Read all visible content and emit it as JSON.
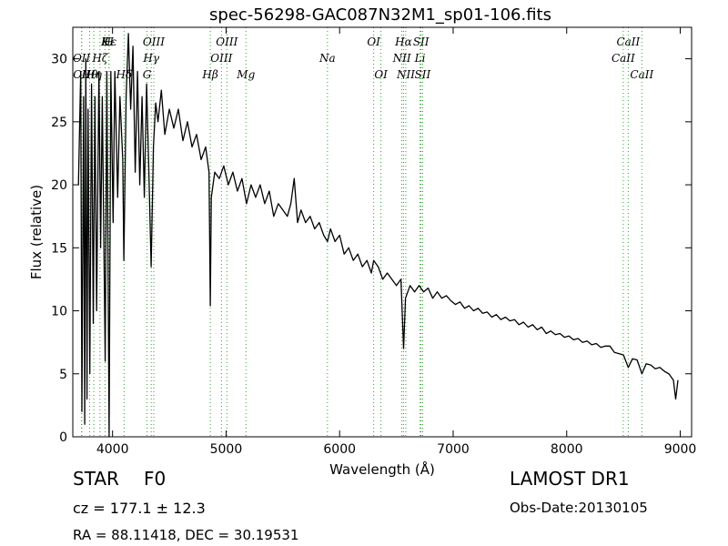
{
  "chart_data": {
    "type": "line",
    "title": "spec-56298-GAC087N32M1_sp01-106.fits",
    "xlabel": "Wavelength (Å)",
    "ylabel": "Flux (relative)",
    "xlim": [
      3650,
      9100
    ],
    "ylim": [
      0,
      32.5
    ],
    "xticks": [
      4000,
      5000,
      6000,
      7000,
      8000,
      9000
    ],
    "yticks": [
      0,
      5,
      10,
      15,
      20,
      25,
      30
    ],
    "grid": false,
    "line_color": "#000000",
    "marker_color": "#2ca02c",
    "series": [
      {
        "points": [
          [
            3700,
            20
          ],
          [
            3720,
            29
          ],
          [
            3730,
            2
          ],
          [
            3745,
            27
          ],
          [
            3755,
            1
          ],
          [
            3765,
            30
          ],
          [
            3775,
            3
          ],
          [
            3785,
            26
          ],
          [
            3800,
            5
          ],
          [
            3815,
            28
          ],
          [
            3830,
            9
          ],
          [
            3845,
            27
          ],
          [
            3860,
            10
          ],
          [
            3880,
            29
          ],
          [
            3895,
            15
          ],
          [
            3910,
            27
          ],
          [
            3935,
            6
          ],
          [
            3950,
            29
          ],
          [
            3970,
            0
          ],
          [
            3985,
            29
          ],
          [
            4005,
            17
          ],
          [
            4020,
            29
          ],
          [
            4045,
            19
          ],
          [
            4065,
            27
          ],
          [
            4090,
            22
          ],
          [
            4100,
            14
          ],
          [
            4120,
            27
          ],
          [
            4140,
            32
          ],
          [
            4160,
            26
          ],
          [
            4180,
            31
          ],
          [
            4200,
            21
          ],
          [
            4220,
            29
          ],
          [
            4240,
            20
          ],
          [
            4260,
            27
          ],
          [
            4280,
            19
          ],
          [
            4300,
            28
          ],
          [
            4320,
            21
          ],
          [
            4340,
            13.5
          ],
          [
            4360,
            23
          ],
          [
            4380,
            26.5
          ],
          [
            4400,
            25
          ],
          [
            4430,
            27.5
          ],
          [
            4460,
            24
          ],
          [
            4500,
            26
          ],
          [
            4540,
            24.5
          ],
          [
            4580,
            26
          ],
          [
            4620,
            23.5
          ],
          [
            4660,
            25
          ],
          [
            4700,
            23
          ],
          [
            4740,
            24
          ],
          [
            4780,
            22
          ],
          [
            4820,
            23
          ],
          [
            4850,
            21
          ],
          [
            4861,
            10.4
          ],
          [
            4870,
            19
          ],
          [
            4900,
            21
          ],
          [
            4940,
            20.5
          ],
          [
            4980,
            21.5
          ],
          [
            5020,
            20
          ],
          [
            5060,
            21
          ],
          [
            5100,
            19.5
          ],
          [
            5140,
            20.5
          ],
          [
            5180,
            18.5
          ],
          [
            5220,
            20
          ],
          [
            5260,
            19
          ],
          [
            5300,
            20
          ],
          [
            5340,
            18.5
          ],
          [
            5380,
            19.5
          ],
          [
            5420,
            17.5
          ],
          [
            5460,
            18.5
          ],
          [
            5500,
            18
          ],
          [
            5540,
            17.5
          ],
          [
            5570,
            18.5
          ],
          [
            5600,
            20.5
          ],
          [
            5630,
            17
          ],
          [
            5660,
            18
          ],
          [
            5700,
            17
          ],
          [
            5740,
            17.5
          ],
          [
            5780,
            16.5
          ],
          [
            5820,
            17
          ],
          [
            5860,
            16
          ],
          [
            5893,
            15.5
          ],
          [
            5920,
            16.5
          ],
          [
            5960,
            15.5
          ],
          [
            6000,
            16
          ],
          [
            6040,
            14.5
          ],
          [
            6080,
            15
          ],
          [
            6120,
            14
          ],
          [
            6160,
            14.5
          ],
          [
            6200,
            13.5
          ],
          [
            6240,
            14
          ],
          [
            6280,
            13
          ],
          [
            6300,
            14
          ],
          [
            6340,
            13.5
          ],
          [
            6380,
            12.5
          ],
          [
            6420,
            13
          ],
          [
            6460,
            12.5
          ],
          [
            6500,
            12
          ],
          [
            6540,
            12.5
          ],
          [
            6563,
            7
          ],
          [
            6580,
            11
          ],
          [
            6620,
            12
          ],
          [
            6660,
            11.5
          ],
          [
            6700,
            12
          ],
          [
            6740,
            11.5
          ],
          [
            6780,
            11.8
          ],
          [
            6820,
            11
          ],
          [
            6860,
            11.5
          ],
          [
            6900,
            11
          ],
          [
            6940,
            11.2
          ],
          [
            6980,
            10.8
          ],
          [
            7020,
            10.5
          ],
          [
            7060,
            10.7
          ],
          [
            7100,
            10.2
          ],
          [
            7140,
            10.4
          ],
          [
            7180,
            10
          ],
          [
            7220,
            10.2
          ],
          [
            7260,
            9.8
          ],
          [
            7300,
            9.9
          ],
          [
            7340,
            9.5
          ],
          [
            7380,
            9.7
          ],
          [
            7420,
            9.3
          ],
          [
            7460,
            9.5
          ],
          [
            7500,
            9.2
          ],
          [
            7540,
            9.3
          ],
          [
            7580,
            8.9
          ],
          [
            7620,
            9.1
          ],
          [
            7660,
            8.7
          ],
          [
            7700,
            8.9
          ],
          [
            7740,
            8.5
          ],
          [
            7780,
            8.7
          ],
          [
            7820,
            8.2
          ],
          [
            7860,
            8.4
          ],
          [
            7900,
            8.1
          ],
          [
            7940,
            8.2
          ],
          [
            7980,
            7.9
          ],
          [
            8020,
            8
          ],
          [
            8060,
            7.7
          ],
          [
            8100,
            7.8
          ],
          [
            8140,
            7.5
          ],
          [
            8180,
            7.6
          ],
          [
            8220,
            7.3
          ],
          [
            8260,
            7.4
          ],
          [
            8300,
            7.1
          ],
          [
            8340,
            7.2
          ],
          [
            8380,
            7.2
          ],
          [
            8420,
            6.7
          ],
          [
            8460,
            6.6
          ],
          [
            8500,
            6.5
          ],
          [
            8542,
            5.5
          ],
          [
            8580,
            6.2
          ],
          [
            8620,
            6.1
          ],
          [
            8662,
            5
          ],
          [
            8700,
            5.8
          ],
          [
            8740,
            5.7
          ],
          [
            8780,
            5.4
          ],
          [
            8820,
            5.5
          ],
          [
            8860,
            5.2
          ],
          [
            8900,
            5
          ],
          [
            8940,
            4.5
          ],
          [
            8960,
            3
          ],
          [
            8980,
            4.5
          ]
        ]
      }
    ],
    "lines": [
      {
        "label": "Hε",
        "x": 3970,
        "row": 1
      },
      {
        "label": "K",
        "x": 3934,
        "row": 1
      },
      {
        "label": "H",
        "x": 3968,
        "row": 1
      },
      {
        "label": "OII",
        "x": 3727,
        "row": 2
      },
      {
        "label": "OII",
        "x": 3729,
        "row": 3
      },
      {
        "label": "Hθ",
        "x": 3798,
        "row": 3
      },
      {
        "label": "Hη",
        "x": 3835,
        "row": 3
      },
      {
        "label": "Hζ",
        "x": 3889,
        "row": 2
      },
      {
        "label": "Hδ",
        "x": 4102,
        "row": 3
      },
      {
        "label": "G",
        "x": 4304,
        "row": 3
      },
      {
        "label": "Hγ",
        "x": 4341,
        "row": 2
      },
      {
        "label": "OIII",
        "x": 4363,
        "row": 1
      },
      {
        "label": "Hβ",
        "x": 4861,
        "row": 3
      },
      {
        "label": "OIII",
        "x": 4959,
        "row": 2
      },
      {
        "label": "OIII",
        "x": 5007,
        "row": 1
      },
      {
        "label": "Mg",
        "x": 5175,
        "row": 3
      },
      {
        "label": "Na",
        "x": 5893,
        "row": 2
      },
      {
        "label": "OI",
        "x": 6300,
        "row": 1
      },
      {
        "label": "OI",
        "x": 6364,
        "row": 3
      },
      {
        "label": "NII",
        "x": 6548,
        "row": 2
      },
      {
        "label": "Hα",
        "x": 6563,
        "row": 1
      },
      {
        "label": "NII",
        "x": 6583,
        "row": 3
      },
      {
        "label": "Li",
        "x": 6708,
        "row": 2
      },
      {
        "label": "SII",
        "x": 6717,
        "row": 1
      },
      {
        "label": "SII",
        "x": 6731,
        "row": 3
      },
      {
        "label": "CaII",
        "x": 8498,
        "row": 2
      },
      {
        "label": "CaII",
        "x": 8542,
        "row": 1
      },
      {
        "label": "CaII",
        "x": 8662,
        "row": 3
      }
    ]
  },
  "info": {
    "object_class": "STAR",
    "subclass": "F0",
    "survey": "LAMOST DR1",
    "cz": "cz = 177.1  ± 12.3",
    "obs_date": "Obs-Date:20130105",
    "coords": "RA = 88.11418, DEC = 30.19531"
  }
}
